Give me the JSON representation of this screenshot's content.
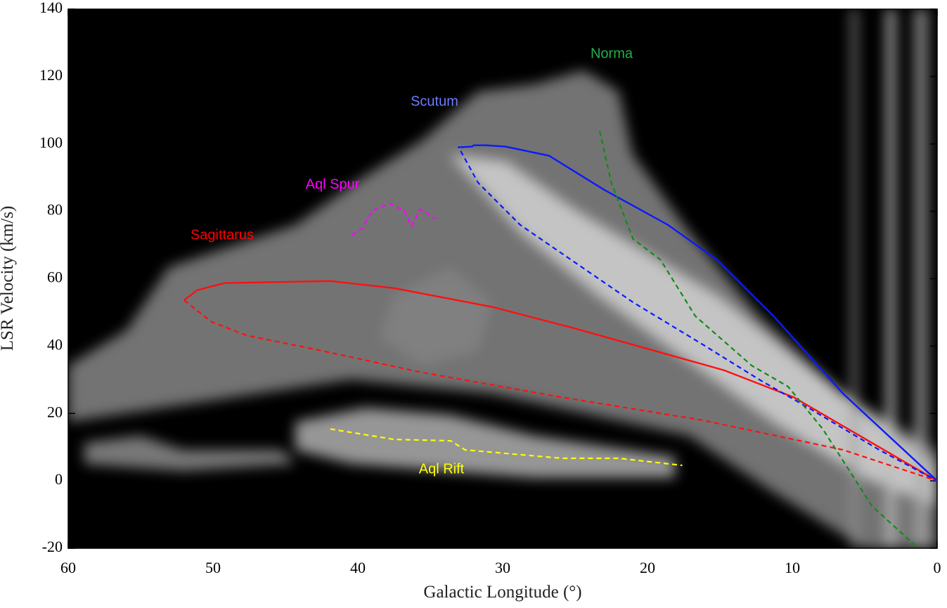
{
  "chart_data": {
    "type": "line",
    "xlabel": "Galactic Longitude (°)",
    "ylabel": "LSR Velocity (km/s)",
    "xlim": [
      60,
      0
    ],
    "ylim": [
      -20,
      140
    ],
    "xticks": [
      60,
      50,
      40,
      30,
      20,
      10,
      0
    ],
    "yticks": [
      -20,
      0,
      20,
      40,
      60,
      80,
      100,
      120,
      140
    ],
    "annotations": [
      {
        "text": "Sagittarus",
        "color": "#ff0000"
      },
      {
        "text": "Aql Spur",
        "color": "#ff00ff"
      },
      {
        "text": "Scutum",
        "color": "#6c7cff"
      },
      {
        "text": "Norma",
        "color": "#22b14c"
      },
      {
        "text": "Aql Rift",
        "color": "#ffff00"
      }
    ],
    "series": [
      {
        "color": "#ff1010",
        "dashed": false,
        "x": [
          52.0,
          51.1,
          49.2,
          41.9,
          37.5,
          30.7,
          24.9,
          14.7,
          9.9,
          0
        ],
        "values": [
          53.6,
          56.6,
          58.7,
          59.3,
          57.2,
          51.6,
          45.1,
          32.8,
          24.8,
          0
        ]
      },
      {
        "color": "#ff1010",
        "dashed": true,
        "x": [
          52.0,
          50.1,
          47.7,
          42.9,
          35.6,
          25.9,
          16.2,
          6.5,
          0
        ],
        "values": [
          53.6,
          47.2,
          43.2,
          39.0,
          32.2,
          24.8,
          18.0,
          9.2,
          0
        ]
      },
      {
        "color": "#0a1aff",
        "dashed": false,
        "x": [
          33.1,
          32.1,
          32.0,
          31.2,
          29.8,
          26.8,
          23.0,
          18.6,
          15.2,
          11.3,
          6.5,
          0
        ],
        "values": [
          99.0,
          99.2,
          99.6,
          99.6,
          99.2,
          96.5,
          86.4,
          76.0,
          65.6,
          48.9,
          25.9,
          0
        ]
      },
      {
        "color": "#0a1aff",
        "dashed": true,
        "x": [
          32.9,
          31.7,
          28.8,
          24.9,
          21.0,
          16.2,
          12.3,
          8.9,
          4.0,
          0
        ],
        "values": [
          97.9,
          88.5,
          76.0,
          64.5,
          53.0,
          40.5,
          30.1,
          21.7,
          9.2,
          0
        ]
      },
      {
        "color": "#138a1a",
        "dashed": true,
        "x": [
          23.3,
          22.5,
          21.0,
          19.1,
          16.7,
          12.8,
          10.3,
          7.9,
          4.5,
          1.5
        ],
        "values": [
          103.8,
          88.5,
          71.8,
          65.6,
          48.9,
          34.2,
          28.0,
          15.4,
          -7.5,
          -19.2
        ]
      },
      {
        "color": "#ff00ff",
        "dashed": true,
        "x": [
          40.4,
          39.7,
          39.0,
          37.8,
          36.8,
          36.3,
          35.7,
          34.6
        ],
        "values": [
          72.9,
          75.0,
          80.2,
          82.3,
          80.2,
          75.6,
          80.6,
          77.7
        ]
      },
      {
        "color": "#ffff00",
        "dashed": true,
        "x": [
          41.9,
          37.5,
          33.6,
          32.6,
          25.9,
          22.0,
          17.6
        ],
        "values": [
          15.4,
          12.3,
          11.9,
          9.2,
          6.7,
          6.7,
          4.6
        ]
      }
    ]
  }
}
